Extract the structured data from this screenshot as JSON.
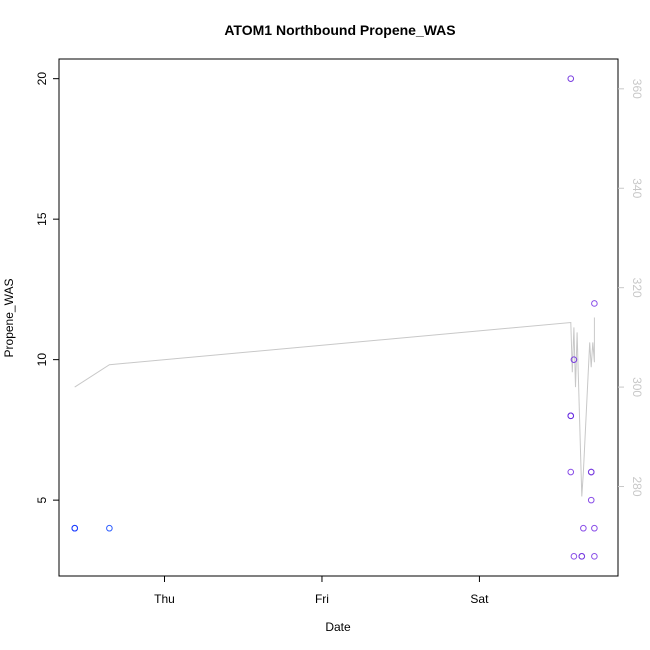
{
  "chart_data": {
    "type": "scatter",
    "title": "ATOM1 Northbound Propene_WAS",
    "xlabel": "Date",
    "ylabel": "Propene_WAS",
    "x_ticks": [
      "Thu",
      "Fri",
      "Sat"
    ],
    "x_tick_days": [
      1,
      2,
      3
    ],
    "xlim_days": [
      0.33,
      3.88
    ],
    "y_ticks": [
      5,
      10,
      15,
      20
    ],
    "ylim": [
      2.3,
      20.7
    ],
    "y2_ticks": [
      280,
      300,
      320,
      340,
      360
    ],
    "y2lim": [
      262,
      366
    ],
    "points": [
      {
        "day": 0.43,
        "value": 4,
        "color": "#1f3fff"
      },
      {
        "day": 0.43,
        "value": 4,
        "color": "#1f3fff"
      },
      {
        "day": 0.65,
        "value": 4,
        "color": "#2f5fff"
      },
      {
        "day": 3.58,
        "value": 20,
        "color": "#7a3fe0"
      },
      {
        "day": 3.58,
        "value": 8,
        "color": "#6a2fe0"
      },
      {
        "day": 3.58,
        "value": 8,
        "color": "#6a2fe0"
      },
      {
        "day": 3.58,
        "value": 6,
        "color": "#8a4fe8"
      },
      {
        "day": 3.6,
        "value": 10,
        "color": "#7a3fe0"
      },
      {
        "day": 3.6,
        "value": 3,
        "color": "#8a4fe8"
      },
      {
        "day": 3.65,
        "value": 3,
        "color": "#7a3fe0"
      },
      {
        "day": 3.65,
        "value": 3,
        "color": "#7a3fe0"
      },
      {
        "day": 3.66,
        "value": 4,
        "color": "#8a4fe8"
      },
      {
        "day": 3.71,
        "value": 6,
        "color": "#7a3fe0"
      },
      {
        "day": 3.71,
        "value": 6,
        "color": "#7a3fe0"
      },
      {
        "day": 3.71,
        "value": 5,
        "color": "#8a4fe8"
      },
      {
        "day": 3.73,
        "value": 3,
        "color": "#8a4fe8"
      },
      {
        "day": 3.73,
        "value": 4,
        "color": "#8a4fe8"
      },
      {
        "day": 3.73,
        "value": 12,
        "color": "#8a4fe8"
      }
    ],
    "line_series": {
      "color": "#c8c8c8",
      "points": [
        {
          "day": 0.43,
          "value": 300
        },
        {
          "day": 0.65,
          "value": 304.5
        },
        {
          "day": 3.58,
          "value": 313
        },
        {
          "day": 3.59,
          "value": 303
        },
        {
          "day": 3.6,
          "value": 312
        },
        {
          "day": 3.61,
          "value": 300
        },
        {
          "day": 3.62,
          "value": 311
        },
        {
          "day": 3.65,
          "value": 278
        },
        {
          "day": 3.66,
          "value": 283
        },
        {
          "day": 3.7,
          "value": 309
        },
        {
          "day": 3.71,
          "value": 304
        },
        {
          "day": 3.72,
          "value": 309
        },
        {
          "day": 3.73,
          "value": 305
        },
        {
          "day": 3.73,
          "value": 314
        }
      ]
    }
  }
}
